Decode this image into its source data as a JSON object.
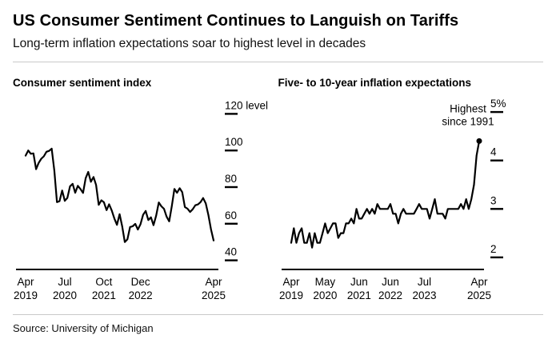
{
  "header": {
    "title": "US Consumer Sentiment Continues to Languish on Tariffs",
    "subtitle": "Long-term inflation expectations soar to highest level in decades"
  },
  "footer": {
    "source": "Source: University of Michigan"
  },
  "colors": {
    "line": "#000000",
    "text": "#000000",
    "divider": "#c9c9c9",
    "background": "#ffffff"
  },
  "chart_data": [
    {
      "type": "line",
      "title": "Consumer sentiment index",
      "unit": "level",
      "frequency": "monthly",
      "x_range": [
        "Apr 2019",
        "Apr 2025"
      ],
      "ylim": [
        35,
        125
      ],
      "yticks": [
        {
          "value": 40,
          "label": "40"
        },
        {
          "value": 60,
          "label": "60"
        },
        {
          "value": 80,
          "label": "80"
        },
        {
          "value": 100,
          "label": "100"
        },
        {
          "value": 120,
          "label": "120 level"
        }
      ],
      "xticks": [
        {
          "index": 0,
          "month": "Apr",
          "year": "2019"
        },
        {
          "index": 15,
          "month": "Jul",
          "year": "2020"
        },
        {
          "index": 30,
          "month": "Oct",
          "year": "2021"
        },
        {
          "index": 44,
          "month": "Dec",
          "year": "2022"
        },
        {
          "index": 72,
          "month": "Apr",
          "year": "2025"
        }
      ],
      "values": [
        97.2,
        100.0,
        98.2,
        98.4,
        89.8,
        93.2,
        95.5,
        96.8,
        99.3,
        99.8,
        101.0,
        89.1,
        71.8,
        72.3,
        78.1,
        72.5,
        74.1,
        80.4,
        81.8,
        76.9,
        80.7,
        79.0,
        76.8,
        84.9,
        88.3,
        82.9,
        85.5,
        81.2,
        70.3,
        72.8,
        71.7,
        67.4,
        70.6,
        67.2,
        62.8,
        59.4,
        65.2,
        58.4,
        50.0,
        51.5,
        58.2,
        58.6,
        59.9,
        56.8,
        59.7,
        64.9,
        67.0,
        62.0,
        63.5,
        59.2,
        64.4,
        71.6,
        69.5,
        68.1,
        63.8,
        61.3,
        69.7,
        79.0,
        76.9,
        79.4,
        77.2,
        69.1,
        68.2,
        66.4,
        67.9,
        70.1,
        70.5,
        71.8,
        74.0,
        71.1,
        64.7,
        57.0,
        50.8
      ],
      "marker_last_point": false
    },
    {
      "type": "line",
      "title": "Five- to 10-year inflation expectations",
      "unit": "%",
      "frequency": "monthly",
      "x_range": [
        "Apr 2019",
        "Apr 2025"
      ],
      "ylim": [
        1.75,
        5.15
      ],
      "yticks": [
        {
          "value": 2,
          "label": "2"
        },
        {
          "value": 3,
          "label": "3"
        },
        {
          "value": 4,
          "label": "4"
        },
        {
          "value": 5,
          "label": "5%"
        }
      ],
      "xticks": [
        {
          "index": 0,
          "month": "Apr",
          "year": "2019"
        },
        {
          "index": 13,
          "month": "May",
          "year": "2020"
        },
        {
          "index": 26,
          "month": "Jun",
          "year": "2021"
        },
        {
          "index": 38,
          "month": "Jun",
          "year": "2022"
        },
        {
          "index": 51,
          "month": "Jul",
          "year": "2023"
        },
        {
          "index": 72,
          "month": "Apr",
          "year": "2025"
        }
      ],
      "values": [
        2.3,
        2.6,
        2.3,
        2.5,
        2.6,
        2.3,
        2.3,
        2.5,
        2.2,
        2.5,
        2.3,
        2.3,
        2.5,
        2.7,
        2.5,
        2.6,
        2.7,
        2.7,
        2.4,
        2.5,
        2.5,
        2.7,
        2.7,
        2.8,
        2.7,
        3.0,
        2.8,
        2.8,
        2.9,
        3.0,
        2.9,
        3.0,
        2.9,
        3.1,
        3.0,
        3.0,
        3.0,
        3.0,
        3.1,
        2.9,
        2.9,
        2.7,
        2.9,
        3.0,
        2.9,
        2.9,
        2.9,
        2.9,
        3.0,
        3.1,
        3.0,
        3.0,
        3.0,
        2.8,
        3.0,
        3.2,
        2.9,
        2.9,
        2.9,
        2.8,
        3.0,
        3.0,
        3.0,
        3.0,
        3.0,
        3.1,
        3.0,
        3.2,
        3.0,
        3.2,
        3.5,
        4.1,
        4.4
      ],
      "marker_last_point": true,
      "annotation": {
        "lines": [
          "Highest",
          "since 1991"
        ],
        "index": 72
      }
    }
  ]
}
